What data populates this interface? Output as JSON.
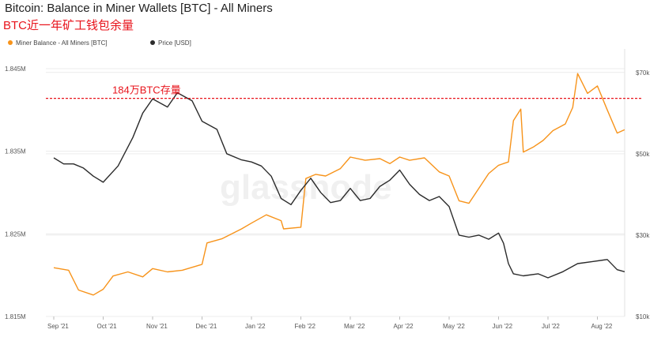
{
  "title": "Bitcoin: Balance in Miner Wallets [BTC] - All Miners",
  "subtitle": "BTC近一年矿工钱包余量",
  "watermark": "glassnode",
  "colors": {
    "balance": "#f7931a",
    "price": "#2b2b2b",
    "reference": "#e8141c",
    "grid": "#ececec"
  },
  "chart_data": {
    "type": "line",
    "x": [
      "Sep '21",
      "Oct '21",
      "Nov '21",
      "Dec '21",
      "Jan '22",
      "Feb '22",
      "Mar '22",
      "Apr '22",
      "May '22",
      "Jun '22",
      "Jul '22",
      "Aug '22"
    ],
    "x_ticks": [
      "Sep '21",
      "Oct '21",
      "Nov '21",
      "Dec '21",
      "Jan '22",
      "Feb '22",
      "Mar '22",
      "Apr '22",
      "May '22",
      "Jun '22",
      "Jul '22",
      "Aug '22"
    ],
    "y_left_ticks": [
      "1.845M",
      "1.835M",
      "1.825M",
      "1.815M"
    ],
    "y_right_ticks": [
      "$70k",
      "$50k",
      "$30k",
      "$10k"
    ],
    "ylim_left": [
      1815000,
      1847000
    ],
    "ylim_right": [
      10000,
      75000
    ],
    "grid": true,
    "legend_position": "top-left",
    "series": [
      {
        "name": "Miner Balance - All Miners [BTC]",
        "axis": "left",
        "values": [
          [
            0.0,
            1820900
          ],
          [
            0.3,
            1820600
          ],
          [
            0.5,
            1818200
          ],
          [
            0.8,
            1817600
          ],
          [
            1.0,
            1818300
          ],
          [
            1.2,
            1819900
          ],
          [
            1.5,
            1820400
          ],
          [
            1.8,
            1819800
          ],
          [
            2.0,
            1820800
          ],
          [
            2.3,
            1820400
          ],
          [
            2.6,
            1820600
          ],
          [
            3.0,
            1821300
          ],
          [
            3.1,
            1823900
          ],
          [
            3.4,
            1824400
          ],
          [
            3.8,
            1825600
          ],
          [
            4.0,
            1826300
          ],
          [
            4.3,
            1827300
          ],
          [
            4.6,
            1826600
          ],
          [
            4.65,
            1825600
          ],
          [
            5.0,
            1825800
          ],
          [
            5.1,
            1831700
          ],
          [
            5.3,
            1832200
          ],
          [
            5.5,
            1832000
          ],
          [
            5.8,
            1832900
          ],
          [
            6.0,
            1834300
          ],
          [
            6.3,
            1833900
          ],
          [
            6.6,
            1834100
          ],
          [
            6.8,
            1833500
          ],
          [
            7.0,
            1834300
          ],
          [
            7.2,
            1833900
          ],
          [
            7.5,
            1834200
          ],
          [
            7.8,
            1832500
          ],
          [
            8.0,
            1832000
          ],
          [
            8.2,
            1829000
          ],
          [
            8.4,
            1828700
          ],
          [
            8.6,
            1830500
          ],
          [
            8.8,
            1832300
          ],
          [
            9.0,
            1833300
          ],
          [
            9.2,
            1833700
          ],
          [
            9.3,
            1838700
          ],
          [
            9.45,
            1840100
          ],
          [
            9.5,
            1834900
          ],
          [
            9.7,
            1835500
          ],
          [
            9.9,
            1836300
          ],
          [
            10.1,
            1837500
          ],
          [
            10.35,
            1838300
          ],
          [
            10.5,
            1840300
          ],
          [
            10.6,
            1844400
          ],
          [
            10.8,
            1842000
          ],
          [
            11.0,
            1842900
          ],
          [
            11.2,
            1840000
          ],
          [
            11.4,
            1837200
          ],
          [
            11.55,
            1837600
          ]
        ]
      },
      {
        "name": "Price [USD]",
        "axis": "right",
        "values": [
          [
            0.0,
            49000
          ],
          [
            0.2,
            47500
          ],
          [
            0.4,
            47500
          ],
          [
            0.6,
            46500
          ],
          [
            0.8,
            44500
          ],
          [
            1.0,
            43000
          ],
          [
            1.3,
            47000
          ],
          [
            1.6,
            54000
          ],
          [
            1.8,
            60000
          ],
          [
            2.0,
            63500
          ],
          [
            2.3,
            61500
          ],
          [
            2.5,
            65000
          ],
          [
            2.8,
            63000
          ],
          [
            3.0,
            58000
          ],
          [
            3.3,
            56000
          ],
          [
            3.5,
            50000
          ],
          [
            3.8,
            48500
          ],
          [
            4.0,
            48000
          ],
          [
            4.2,
            47000
          ],
          [
            4.4,
            44500
          ],
          [
            4.6,
            39000
          ],
          [
            4.8,
            37500
          ],
          [
            5.0,
            41000
          ],
          [
            5.2,
            44000
          ],
          [
            5.4,
            40500
          ],
          [
            5.6,
            38000
          ],
          [
            5.8,
            38500
          ],
          [
            6.0,
            41500
          ],
          [
            6.2,
            38500
          ],
          [
            6.4,
            39000
          ],
          [
            6.6,
            42000
          ],
          [
            6.8,
            43500
          ],
          [
            7.0,
            46000
          ],
          [
            7.2,
            42500
          ],
          [
            7.4,
            40000
          ],
          [
            7.6,
            38500
          ],
          [
            7.8,
            39500
          ],
          [
            8.0,
            37000
          ],
          [
            8.2,
            30000
          ],
          [
            8.4,
            29500
          ],
          [
            8.6,
            30000
          ],
          [
            8.8,
            29000
          ],
          [
            9.0,
            30500
          ],
          [
            9.1,
            28000
          ],
          [
            9.2,
            23000
          ],
          [
            9.3,
            20500
          ],
          [
            9.5,
            20000
          ],
          [
            9.8,
            20500
          ],
          [
            10.0,
            19500
          ],
          [
            10.3,
            21000
          ],
          [
            10.6,
            23000
          ],
          [
            10.9,
            23500
          ],
          [
            11.2,
            24000
          ],
          [
            11.4,
            21500
          ],
          [
            11.55,
            21000
          ]
        ]
      }
    ],
    "annotations": [
      {
        "text": "184万BTC存量",
        "y": 1841400,
        "axis": "left",
        "style": "dashed"
      }
    ]
  }
}
